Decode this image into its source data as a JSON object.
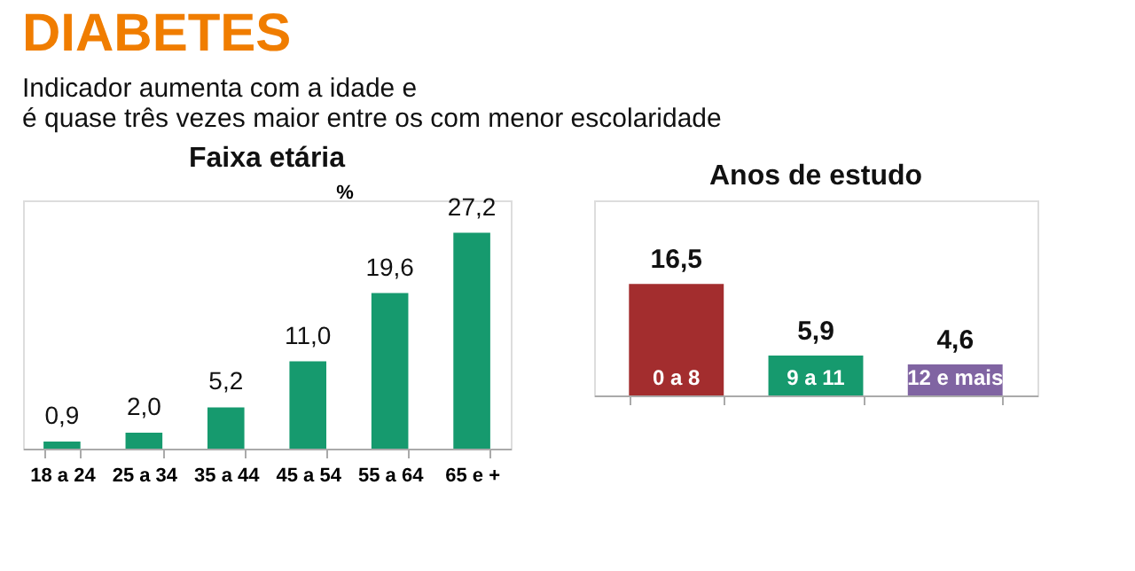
{
  "chart_data": [
    {
      "type": "other",
      "title": "DIABETES",
      "subtitle": "Indicador aumenta com a idade e\né quase três vezes maior entre os com menor escolaridade",
      "color": "#f07d00"
    },
    {
      "type": "bar",
      "title": "Faixa etária",
      "ylabel": "%",
      "categories": [
        "18 a 24",
        "25 a 34",
        "35 a 44",
        "45 a 54",
        "55 a 64",
        "65 e +"
      ],
      "values": [
        0.9,
        2.0,
        5.2,
        11.0,
        19.6,
        27.2
      ],
      "color": "#169a6e",
      "data_labels": true,
      "value_labels": [
        "0,9",
        "2,0",
        "5,2",
        "11,0",
        "19,6",
        "27,2"
      ]
    },
    {
      "type": "bar",
      "title": "Anos de estudo",
      "categories": [
        "0 a 8",
        "9 a 11",
        "12 e mais"
      ],
      "values": [
        16.5,
        5.9,
        4.6
      ],
      "colors": [
        "#a32d2e",
        "#169a6e",
        "#8064a2"
      ],
      "data_labels": true,
      "value_labels": [
        "16,5",
        "5,9",
        "4,6"
      ],
      "tick_labels": false
    }
  ]
}
